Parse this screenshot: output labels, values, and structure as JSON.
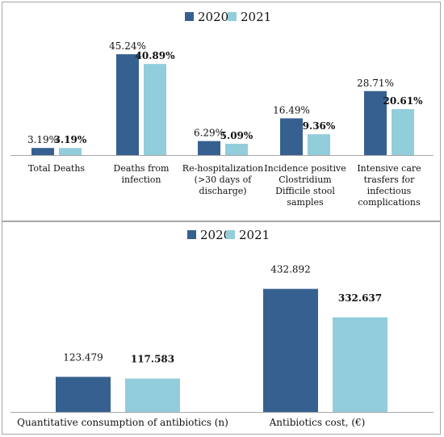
{
  "colors": {
    "series_2020": "#36608f",
    "series_2021": "#92cddb",
    "axis": "#a6a6a6"
  },
  "chart_data": [
    {
      "type": "bar",
      "legend": "top-center",
      "grid": false,
      "categories": [
        "Total Deaths",
        "Deaths from infection",
        "Re-hospitalization (>30 days of discharge)",
        "Incidence positive Clostridium Difficile stool samples",
        "Intensive care trasfers for infectious complications"
      ],
      "ylim": [
        0,
        50
      ],
      "series": [
        {
          "name": "2020",
          "values": [
            3.19,
            45.24,
            6.29,
            16.49,
            28.71
          ],
          "labels": [
            "3.19%",
            "45.24%",
            "6.29%",
            "16.49%",
            "28.71%"
          ]
        },
        {
          "name": "2021",
          "values": [
            3.19,
            40.89,
            5.09,
            9.36,
            20.61
          ],
          "labels": [
            "3.19%",
            "40.89%",
            "5.09%",
            "9.36%",
            "20.61%"
          ]
        }
      ]
    },
    {
      "type": "bar",
      "legend": "top-center",
      "grid": false,
      "categories": [
        "Quantitative consumption of antibiotics (n)",
        "Antibiotics cost, (€)"
      ],
      "ylim": [
        0,
        500
      ],
      "series": [
        {
          "name": "2020",
          "values": [
            123.479,
            432.892
          ],
          "labels": [
            "123.479",
            "432.892"
          ]
        },
        {
          "name": "2021",
          "values": [
            117.583,
            332.637
          ],
          "labels": [
            "117.583",
            "332.637"
          ]
        }
      ]
    }
  ]
}
